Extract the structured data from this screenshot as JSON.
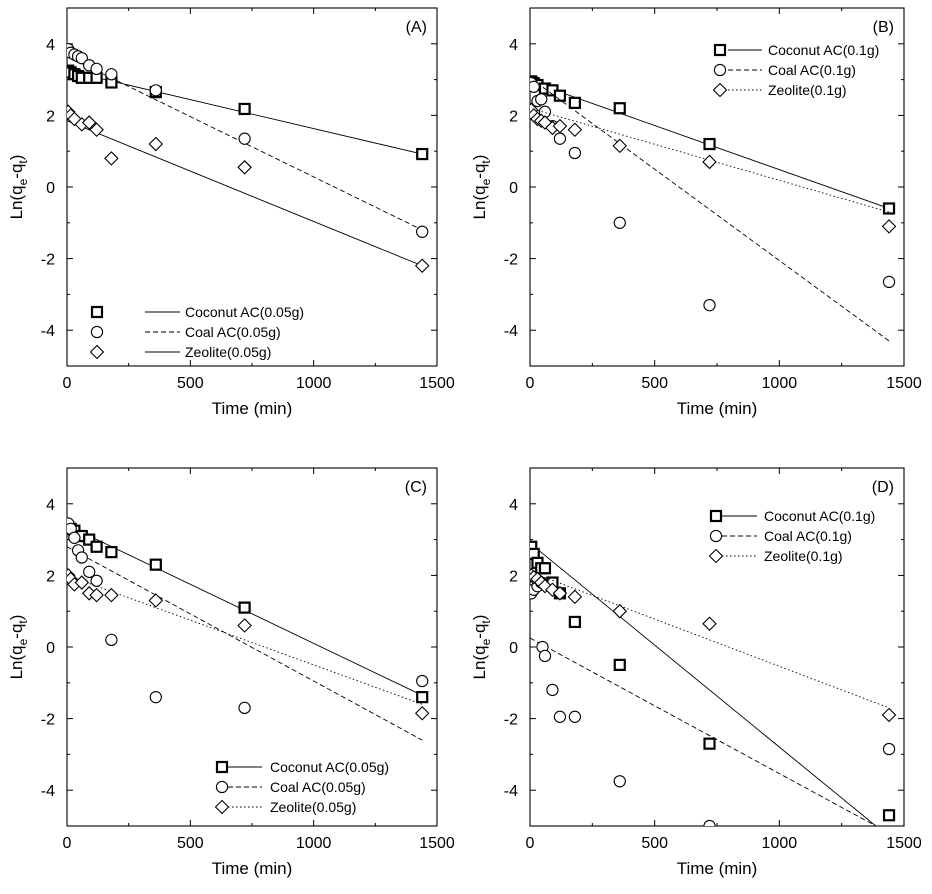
{
  "chart_data": [
    {
      "type": "scatter",
      "panel_label": "(A)",
      "xlabel": "Time (min)",
      "ylabel": "Ln(q_e-q_t)",
      "xlim": [
        0,
        1500
      ],
      "ylim": [
        -5,
        5
      ],
      "xticks": [
        0,
        500,
        1000,
        1500
      ],
      "yticks": [
        -4,
        -2,
        0,
        2,
        4
      ],
      "legend_position": "bottom-left",
      "series": [
        {
          "name": "Coconut AC(0.05g)",
          "marker": "square",
          "line_style": "solid",
          "points": [
            [
              5,
              3.25
            ],
            [
              15,
              3.2
            ],
            [
              30,
              3.15
            ],
            [
              45,
              3.1
            ],
            [
              60,
              3.05
            ],
            [
              90,
              3.05
            ],
            [
              120,
              3.05
            ],
            [
              180,
              2.92
            ],
            [
              360,
              2.65
            ],
            [
              720,
              2.18
            ],
            [
              1440,
              0.92
            ]
          ],
          "fit": [
            [
              0,
              3.25
            ],
            [
              1440,
              0.92
            ]
          ]
        },
        {
          "name": "Coal AC(0.05g)",
          "marker": "circle",
          "line_style": "dashed",
          "points": [
            [
              5,
              3.85
            ],
            [
              15,
              3.75
            ],
            [
              30,
              3.7
            ],
            [
              45,
              3.65
            ],
            [
              60,
              3.6
            ],
            [
              90,
              3.4
            ],
            [
              120,
              3.3
            ],
            [
              180,
              3.15
            ],
            [
              360,
              2.7
            ],
            [
              720,
              1.35
            ],
            [
              1440,
              -1.25
            ]
          ],
          "fit": [
            [
              0,
              3.65
            ],
            [
              1440,
              -1.2
            ]
          ]
        },
        {
          "name": "Zeolite(0.05g)",
          "marker": "diamond",
          "line_style": "solid",
          "points": [
            [
              5,
              2.1
            ],
            [
              15,
              2.0
            ],
            [
              30,
              1.9
            ],
            [
              60,
              1.75
            ],
            [
              90,
              1.8
            ],
            [
              120,
              1.6
            ],
            [
              180,
              0.8
            ],
            [
              360,
              1.2
            ],
            [
              720,
              0.55
            ],
            [
              1440,
              -2.2
            ]
          ],
          "fit": [
            [
              0,
              1.85
            ],
            [
              1440,
              -2.2
            ]
          ]
        }
      ]
    },
    {
      "type": "scatter",
      "panel_label": "(B)",
      "xlabel": "Time (min)",
      "ylabel": "Ln(q_e-q_t)",
      "xlim": [
        0,
        1500
      ],
      "ylim": [
        -5,
        5
      ],
      "xticks": [
        0,
        500,
        1000,
        1500
      ],
      "yticks": [
        -4,
        -2,
        0,
        2,
        4
      ],
      "legend_position": "top-right",
      "series": [
        {
          "name": "Coconut AC(0.1g)",
          "marker": "square",
          "line_style": "solid",
          "points": [
            [
              5,
              2.95
            ],
            [
              15,
              2.9
            ],
            [
              30,
              2.85
            ],
            [
              60,
              2.75
            ],
            [
              90,
              2.7
            ],
            [
              120,
              2.55
            ],
            [
              180,
              2.35
            ],
            [
              360,
              2.2
            ],
            [
              720,
              1.2
            ],
            [
              1440,
              -0.6
            ]
          ],
          "fit": [
            [
              0,
              2.95
            ],
            [
              1440,
              -0.6
            ]
          ]
        },
        {
          "name": "Coal AC(0.1g)",
          "marker": "circle",
          "line_style": "dashed",
          "points": [
            [
              5,
              2.9
            ],
            [
              15,
              2.8
            ],
            [
              30,
              2.4
            ],
            [
              45,
              2.45
            ],
            [
              60,
              2.1
            ],
            [
              90,
              1.7
            ],
            [
              120,
              1.35
            ],
            [
              180,
              0.95
            ],
            [
              360,
              -1.0
            ],
            [
              720,
              -3.3
            ],
            [
              1440,
              -2.65
            ]
          ],
          "fit": [
            [
              0,
              3.05
            ],
            [
              1440,
              -4.3
            ]
          ]
        },
        {
          "name": "Zeolite(0.1g)",
          "marker": "diamond",
          "line_style": "dotted",
          "points": [
            [
              5,
              2.15
            ],
            [
              15,
              2.0
            ],
            [
              30,
              1.9
            ],
            [
              45,
              1.85
            ],
            [
              60,
              1.8
            ],
            [
              90,
              1.65
            ],
            [
              120,
              1.7
            ],
            [
              180,
              1.6
            ],
            [
              360,
              1.15
            ],
            [
              720,
              0.7
            ],
            [
              1440,
              -1.1
            ]
          ],
          "fit": [
            [
              0,
              2.2
            ],
            [
              1440,
              -0.7
            ]
          ]
        }
      ]
    },
    {
      "type": "scatter",
      "panel_label": "(C)",
      "xlabel": "Time (min)",
      "ylabel": "Ln(q_e-q_t)",
      "xlim": [
        0,
        1500
      ],
      "ylim": [
        -5,
        5
      ],
      "xticks": [
        0,
        500,
        1000,
        1500
      ],
      "yticks": [
        -4,
        -2,
        0,
        2,
        4
      ],
      "legend_position": "bottom-right",
      "series": [
        {
          "name": "Coconut AC(0.05g)",
          "marker": "square",
          "line_style": "solid",
          "points": [
            [
              5,
              3.35
            ],
            [
              15,
              3.3
            ],
            [
              30,
              3.25
            ],
            [
              60,
              3.1
            ],
            [
              90,
              3.0
            ],
            [
              120,
              2.8
            ],
            [
              180,
              2.65
            ],
            [
              360,
              2.3
            ],
            [
              720,
              1.1
            ],
            [
              1440,
              -1.4
            ]
          ],
          "fit": [
            [
              0,
              3.4
            ],
            [
              1440,
              -1.35
            ]
          ]
        },
        {
          "name": "Coal AC(0.05g)",
          "marker": "circle",
          "line_style": "dashed",
          "points": [
            [
              5,
              3.45
            ],
            [
              15,
              3.3
            ],
            [
              30,
              3.05
            ],
            [
              45,
              2.7
            ],
            [
              60,
              2.5
            ],
            [
              90,
              2.1
            ],
            [
              120,
              1.85
            ],
            [
              180,
              0.2
            ],
            [
              360,
              -1.4
            ],
            [
              720,
              -1.7
            ],
            [
              1440,
              -0.95
            ]
          ],
          "fit": [
            [
              0,
              2.8
            ],
            [
              1440,
              -2.6
            ]
          ]
        },
        {
          "name": "Zeolite(0.05g)",
          "marker": "diamond",
          "line_style": "dotted",
          "points": [
            [
              5,
              2.0
            ],
            [
              15,
              1.9
            ],
            [
              30,
              1.75
            ],
            [
              60,
              1.8
            ],
            [
              90,
              1.5
            ],
            [
              120,
              1.45
            ],
            [
              180,
              1.45
            ],
            [
              360,
              1.3
            ],
            [
              720,
              0.6
            ],
            [
              1440,
              -1.85
            ]
          ],
          "fit": [
            [
              0,
              2.0
            ],
            [
              1440,
              -1.6
            ]
          ]
        }
      ]
    },
    {
      "type": "scatter",
      "panel_label": "(D)",
      "xlabel": "Time (min)",
      "ylabel": "Ln(q_e-q_t)",
      "xlim": [
        0,
        1500
      ],
      "ylim": [
        -5,
        5
      ],
      "xticks": [
        0,
        500,
        1000,
        1500
      ],
      "yticks": [
        -4,
        -2,
        0,
        2,
        4
      ],
      "legend_position": "top-right",
      "series": [
        {
          "name": "Coconut AC(0.1g)",
          "marker": "square",
          "line_style": "solid",
          "points": [
            [
              5,
              2.8
            ],
            [
              15,
              2.6
            ],
            [
              30,
              2.35
            ],
            [
              45,
              2.2
            ],
            [
              60,
              2.2
            ],
            [
              90,
              1.8
            ],
            [
              120,
              1.5
            ],
            [
              180,
              0.7
            ],
            [
              360,
              -0.5
            ],
            [
              720,
              -2.7
            ],
            [
              1440,
              -4.7
            ]
          ],
          "fit": [
            [
              0,
              2.9
            ],
            [
              1440,
              -5.3
            ]
          ]
        },
        {
          "name": "Coal AC(0.1g)",
          "marker": "circle",
          "line_style": "dashed",
          "points": [
            [
              5,
              1.5
            ],
            [
              15,
              1.6
            ],
            [
              30,
              1.7
            ],
            [
              45,
              1.8
            ],
            [
              50,
              0.0
            ],
            [
              60,
              -0.25
            ],
            [
              90,
              -1.2
            ],
            [
              120,
              -1.95
            ],
            [
              180,
              -1.95
            ],
            [
              360,
              -3.75
            ],
            [
              720,
              -5.0
            ],
            [
              1440,
              -2.85
            ]
          ],
          "fit": [
            [
              0,
              0.25
            ],
            [
              1440,
              -5.2
            ]
          ]
        },
        {
          "name": "Zeolite(0.1g)",
          "marker": "diamond",
          "line_style": "dotted",
          "points": [
            [
              5,
              2.0
            ],
            [
              15,
              1.95
            ],
            [
              30,
              1.9
            ],
            [
              45,
              1.8
            ],
            [
              60,
              1.7
            ],
            [
              90,
              1.6
            ],
            [
              120,
              1.5
            ],
            [
              180,
              1.4
            ],
            [
              360,
              1.0
            ],
            [
              720,
              0.65
            ],
            [
              1440,
              -1.9
            ]
          ],
          "fit": [
            [
              0,
              2.1
            ],
            [
              1440,
              -1.7
            ]
          ]
        }
      ]
    }
  ]
}
